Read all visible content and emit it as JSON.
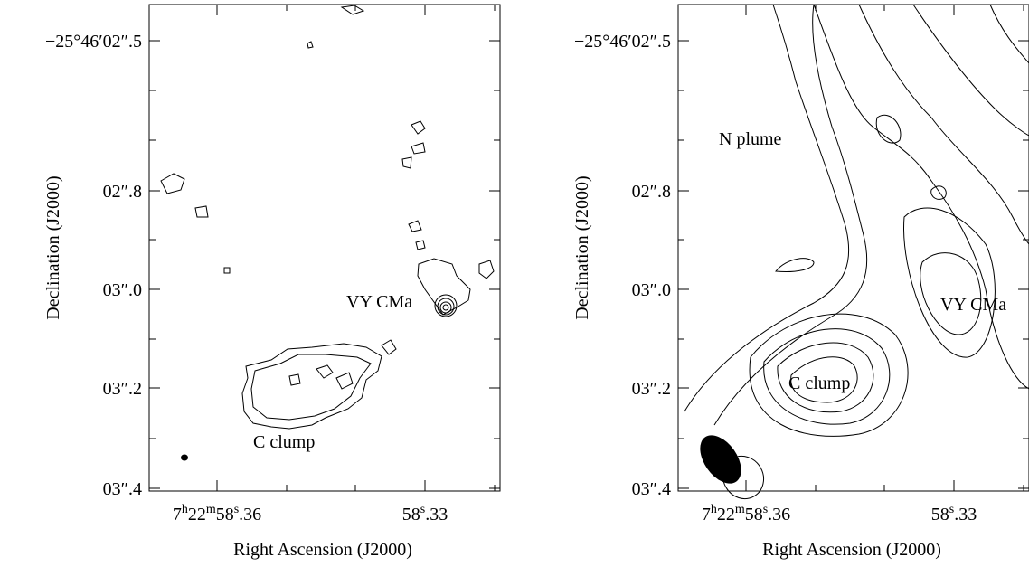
{
  "panels": [
    {
      "y_axis_label": "Declination (J2000)",
      "x_axis_label": "Right Ascension (J2000)",
      "y_tick_labels": [
        "−25°46′02″.5",
        "02″.8",
        "03″.0",
        "03″.2",
        "03″.4"
      ],
      "x_tick_labels": [
        [
          "7",
          "h",
          "22",
          "m",
          "58",
          "s",
          ".36"
        ],
        [
          "58",
          "s",
          ".33"
        ]
      ],
      "annotations": [
        "VY CMa",
        "C clump"
      ]
    },
    {
      "y_axis_label": "Declination (J2000)",
      "x_axis_label": "Right Ascension (J2000)",
      "y_tick_labels": [
        "−25°46′02″.5",
        "02″.8",
        "03″.0",
        "03″.2",
        "03″.4"
      ],
      "x_tick_labels": [
        [
          "7",
          "h",
          "22",
          "m",
          "58",
          "s",
          ".36"
        ],
        [
          "58",
          "s",
          ".33"
        ]
      ],
      "annotations": [
        "N plume",
        "VY CMa",
        "C clump"
      ]
    }
  ]
}
